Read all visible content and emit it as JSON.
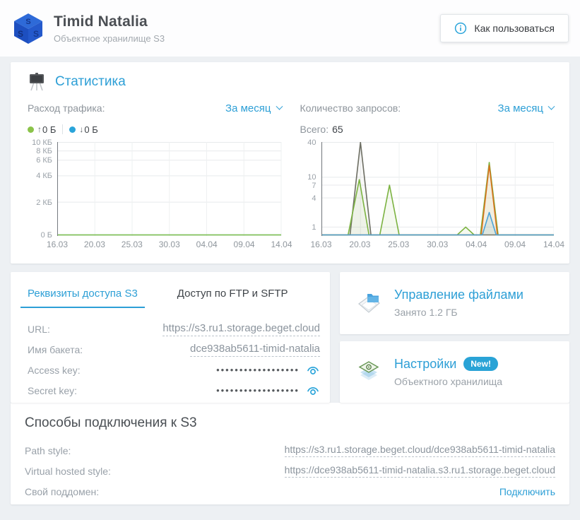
{
  "header": {
    "title": "Timid Natalia",
    "subtitle": "Объектное хранилище S3",
    "help_button": "Как пользоваться"
  },
  "stats": {
    "title": "Статистика"
  },
  "chart_data": [
    {
      "type": "area",
      "header_label": "Расход трафика:",
      "period": "За месяц",
      "legend": [
        {
          "marker_color": "#8bc34a",
          "direction": "up",
          "label": "0 Б"
        },
        {
          "marker_color": "#2aa4da",
          "direction": "down",
          "label": "0 Б"
        }
      ],
      "x_ticks": [
        "16.03",
        "20.03",
        "25.03",
        "30.03",
        "04.04",
        "09.04",
        "14.04"
      ],
      "y_ticks": [
        {
          "label": "10 КБ",
          "v": 10,
          "f": 0
        },
        {
          "label": "8 КБ",
          "v": 8,
          "f": 0.092
        },
        {
          "label": "6 КБ",
          "v": 6,
          "f": 0.192
        },
        {
          "label": "4 КБ",
          "v": 4,
          "f": 0.362
        },
        {
          "label": "2 КБ",
          "v": 2,
          "f": 0.646
        },
        {
          "label": "0 Б",
          "v": 0,
          "f": 1
        }
      ],
      "series": [
        {
          "name": "download",
          "color": "#2aa4da",
          "points": [
            [
              0,
              0
            ],
            [
              6,
              0
            ]
          ]
        },
        {
          "name": "upload",
          "color": "#8bc34a",
          "points": [
            [
              0,
              0
            ],
            [
              6,
              0
            ]
          ]
        }
      ]
    },
    {
      "type": "area",
      "header_label": "Количество запросов:",
      "period": "За месяц",
      "total_label": "Всего:",
      "total_value": "65",
      "x_ticks": [
        "16.03",
        "20.03",
        "25.03",
        "30.03",
        "04.04",
        "09.04",
        "14.04"
      ],
      "y_ticks": [
        {
          "label": "40",
          "v": 40,
          "f": 0
        },
        {
          "label": "10",
          "v": 10,
          "f": 0.377
        },
        {
          "label": "7",
          "v": 7,
          "f": 0.462
        },
        {
          "label": "4",
          "v": 4,
          "f": 0.6
        },
        {
          "label": "1",
          "v": 1,
          "f": 0.915
        }
      ],
      "series": [
        {
          "name": "series-dark",
          "color": "#6e6f64",
          "fill": "rgba(110,111,100,0.05)",
          "points": [
            [
              0,
              0
            ],
            [
              0.73,
              0
            ],
            [
              1.0,
              40
            ],
            [
              1.27,
              0
            ],
            [
              6,
              0
            ]
          ]
        },
        {
          "name": "series-green",
          "color": "#7cb342",
          "fill": "rgba(124,179,66,0.08)",
          "points": [
            [
              0,
              0
            ],
            [
              0.68,
              0
            ],
            [
              0.97,
              9
            ],
            [
              1.22,
              0
            ],
            [
              1.5,
              0
            ],
            [
              1.75,
              7
            ],
            [
              2.0,
              0
            ],
            [
              3.5,
              0
            ],
            [
              3.72,
              1
            ],
            [
              3.94,
              0
            ],
            [
              4.1,
              0
            ],
            [
              4.33,
              18
            ],
            [
              4.56,
              0
            ],
            [
              6,
              0
            ]
          ]
        },
        {
          "name": "series-orange",
          "color": "#d9721d",
          "fill": "rgba(217,114,29,0.08)",
          "points": [
            [
              0,
              0
            ],
            [
              4.12,
              0
            ],
            [
              4.33,
              16
            ],
            [
              4.54,
              0
            ],
            [
              6,
              0
            ]
          ]
        },
        {
          "name": "series-blue",
          "color": "#4ba3d8",
          "fill": "rgba(75,163,216,0.12)",
          "points": [
            [
              0,
              0
            ],
            [
              4.15,
              0
            ],
            [
              4.33,
              2
            ],
            [
              4.51,
              0
            ],
            [
              6,
              0
            ]
          ]
        }
      ]
    }
  ],
  "credentials": {
    "tabs": [
      {
        "label": "Реквизиты доступа S3",
        "active": true
      },
      {
        "label": "Доступ по FTP и SFTP",
        "active": false
      }
    ],
    "fields": [
      {
        "label": "URL:",
        "value": "https://s3.ru1.storage.beget.cloud",
        "masked": false
      },
      {
        "label": "Имя бакета:",
        "value": "dce938ab5611-timid-natalia",
        "masked": false
      },
      {
        "label": "Access key:",
        "value": "••••••••••••••••••",
        "masked": true
      },
      {
        "label": "Secret key:",
        "value": "••••••••••••••••••",
        "masked": true
      }
    ]
  },
  "cards": {
    "files": {
      "title": "Управление файлами",
      "subtitle": "Занято 1.2 ГБ"
    },
    "settings": {
      "title": "Настройки",
      "badge": "New!",
      "subtitle": "Объектного хранилища"
    }
  },
  "connection": {
    "title": "Способы подключения к S3",
    "rows": [
      {
        "label": "Path style:",
        "value": "https://s3.ru1.storage.beget.cloud/dce938ab5611-timid-natalia"
      },
      {
        "label": "Virtual hosted style:",
        "value": "https://dce938ab5611-timid-natalia.s3.ru1.storage.beget.cloud"
      },
      {
        "label": "Свой поддомен:",
        "action": "Подключить"
      }
    ]
  },
  "colors": {
    "accent_blue": "#2d9fd6",
    "legend_green": "#8bc34a",
    "legend_blue": "#2aa4da",
    "series_dark": "#6e6f64",
    "series_green": "#7cb342",
    "series_orange": "#d9721d",
    "series_blue": "#4ba3d8"
  }
}
